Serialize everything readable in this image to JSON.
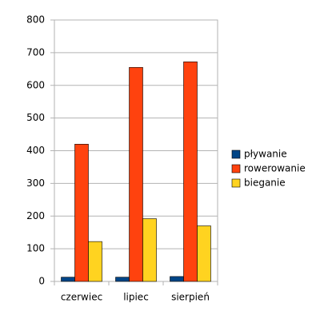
{
  "chart_data": {
    "type": "bar",
    "categories": [
      "czerwiec",
      "lipiec",
      "sierpień"
    ],
    "series": [
      {
        "name": "pływanie",
        "color": "#004586",
        "values": [
          13,
          13,
          15
        ]
      },
      {
        "name": "rowerowanie",
        "color": "#ff420e",
        "values": [
          420,
          655,
          672
        ]
      },
      {
        "name": "bieganie",
        "color": "#ffd320",
        "values": [
          122,
          192,
          170
        ]
      }
    ],
    "ylim": [
      0,
      800
    ],
    "yticks": [
      0,
      100,
      200,
      300,
      400,
      500,
      600,
      700,
      800
    ],
    "grid": true,
    "legend": "right"
  }
}
